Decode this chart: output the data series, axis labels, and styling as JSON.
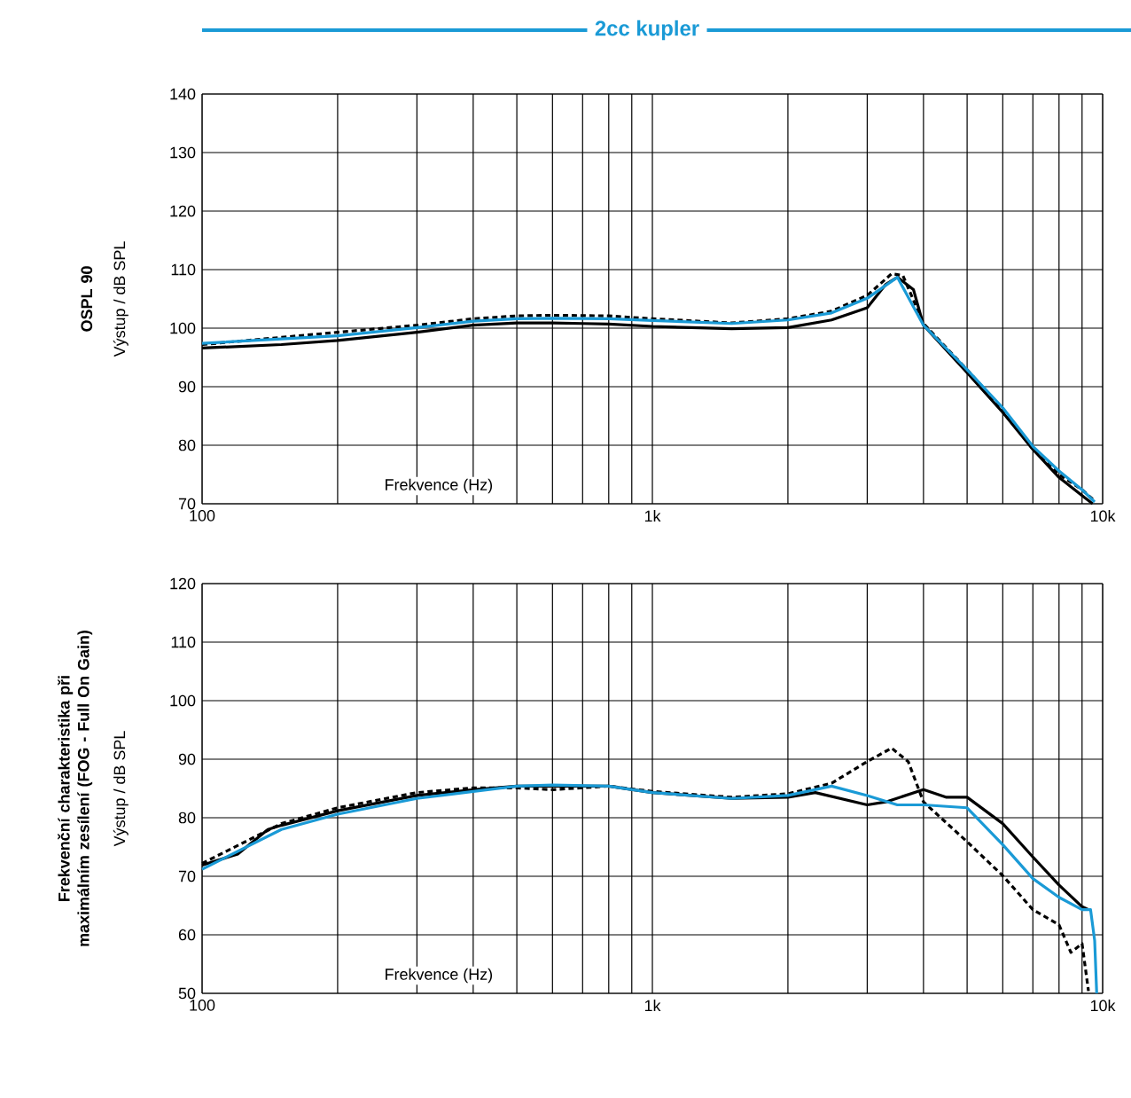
{
  "chart_data": [
    {
      "type": "line",
      "title": "2cc kupler",
      "subtitle": "**OSPL 90**",
      "ylabel": "Výstup / dB SPL",
      "xlabel": "Frekvence (Hz)",
      "log": "x",
      "grid": true,
      "marker": "none",
      "xlim": [
        100,
        10000
      ],
      "ylim": [
        70,
        140
      ],
      "xticks": [
        {
          "value": 100,
          "label": "100"
        },
        {
          "value": 200,
          "label": null
        },
        {
          "value": 300,
          "label": null
        },
        {
          "value": 400,
          "label": null
        },
        {
          "value": 500,
          "label": null
        },
        {
          "value": 600,
          "label": null
        },
        {
          "value": 700,
          "label": null
        },
        {
          "value": 800,
          "label": null
        },
        {
          "value": 900,
          "label": null
        },
        {
          "value": 1000,
          "label": "1k"
        },
        {
          "value": 2000,
          "label": null
        },
        {
          "value": 3000,
          "label": null
        },
        {
          "value": 4000,
          "label": null
        },
        {
          "value": 5000,
          "label": null
        },
        {
          "value": 6000,
          "label": null
        },
        {
          "value": 7000,
          "label": null
        },
        {
          "value": 8000,
          "label": null
        },
        {
          "value": 9000,
          "label": null
        },
        {
          "value": 10000,
          "label": "10k"
        }
      ],
      "yticks": [
        70,
        80,
        90,
        100,
        110,
        120,
        130,
        140
      ],
      "series": [
        {
          "color": "#000000",
          "line_style": "solid",
          "x": [
            100,
            150,
            200,
            300,
            400,
            500,
            600,
            700,
            800,
            1000,
            1500,
            2000,
            2500,
            3000,
            3300,
            3500,
            3800,
            4000,
            5000,
            6000,
            7000,
            8000,
            9000,
            9500
          ],
          "values": [
            96.6,
            97.2,
            97.9,
            99.3,
            100.5,
            100.9,
            100.9,
            100.8,
            100.7,
            100.3,
            99.9,
            100.1,
            101.4,
            103.5,
            107.5,
            108.7,
            106.6,
            100.5,
            92.4,
            85.6,
            79.3,
            74.5,
            71.4,
            70
          ]
        },
        {
          "color": "#000000",
          "line_style": "dashed",
          "x": [
            100,
            200,
            300,
            400,
            500,
            600,
            800,
            1000,
            1500,
            2000,
            2500,
            3000,
            3400,
            3600,
            4000,
            5000,
            6000,
            7000,
            8000,
            9000,
            9500
          ],
          "values": [
            97.2,
            99.3,
            100.5,
            101.6,
            102.1,
            102.2,
            102.1,
            101.6,
            100.9,
            101.6,
            102.9,
            105.6,
            109.3,
            109,
            100.8,
            92.9,
            86.1,
            79.3,
            75,
            72.4,
            70.8
          ]
        },
        {
          "color": "#1a9ad6",
          "line_style": "solid",
          "x": [
            100,
            200,
            300,
            400,
            500,
            600,
            800,
            1000,
            1500,
            2000,
            2500,
            3000,
            3500,
            4000,
            5000,
            6000,
            7000,
            8000,
            9000,
            9600
          ],
          "values": [
            97.4,
            98.7,
            100.1,
            101.2,
            101.6,
            101.7,
            101.6,
            101.3,
            100.8,
            101.4,
            102.6,
            105.1,
            108.7,
            100.5,
            92.9,
            86.4,
            79.8,
            75.6,
            72.4,
            70.3
          ]
        }
      ]
    },
    {
      "type": "line",
      "subtitle": "**Frekvenční charakteristika při maximálním zesílení (FOG - Full On Gain)**",
      "ylabel": "Výstup / dB SPL",
      "xlabel": "Frekvence (Hz)",
      "log": "x",
      "grid": true,
      "marker": "none",
      "xlim": [
        100,
        10000
      ],
      "ylim": [
        50,
        120
      ],
      "xticks": [
        {
          "value": 100,
          "label": "100"
        },
        {
          "value": 200,
          "label": null
        },
        {
          "value": 300,
          "label": null
        },
        {
          "value": 400,
          "label": null
        },
        {
          "value": 500,
          "label": null
        },
        {
          "value": 600,
          "label": null
        },
        {
          "value": 700,
          "label": null
        },
        {
          "value": 800,
          "label": null
        },
        {
          "value": 900,
          "label": null
        },
        {
          "value": 1000,
          "label": "1k"
        },
        {
          "value": 2000,
          "label": null
        },
        {
          "value": 3000,
          "label": null
        },
        {
          "value": 4000,
          "label": null
        },
        {
          "value": 5000,
          "label": null
        },
        {
          "value": 6000,
          "label": null
        },
        {
          "value": 7000,
          "label": null
        },
        {
          "value": 8000,
          "label": null
        },
        {
          "value": 9000,
          "label": null
        },
        {
          "value": 10000,
          "label": "10k"
        }
      ],
      "yticks": [
        50,
        60,
        70,
        80,
        90,
        100,
        110,
        120
      ],
      "series": [
        {
          "color": "#000000",
          "line_style": "solid",
          "x": [
            100,
            120,
            140,
            150,
            200,
            300,
            400,
            500,
            600,
            800,
            1000,
            1500,
            2000,
            2300,
            3000,
            3300,
            4000,
            4500,
            5000,
            6000,
            7000,
            8000,
            9000,
            9300
          ],
          "values": [
            71.9,
            73.8,
            78,
            78.7,
            81.2,
            83.8,
            84.8,
            85.4,
            85.4,
            85.4,
            84.3,
            83.3,
            83.5,
            84.3,
            82.2,
            82.7,
            84.8,
            83.5,
            83.5,
            79,
            73.3,
            68.5,
            64.8,
            64.3
          ]
        },
        {
          "color": "#000000",
          "line_style": "dashed",
          "x": [
            100,
            150,
            200,
            300,
            400,
            500,
            600,
            800,
            1000,
            1500,
            2000,
            2500,
            3000,
            3400,
            3700,
            4000,
            5000,
            6000,
            7000,
            8000,
            8500,
            9000,
            9300
          ],
          "values": [
            72.2,
            79,
            81.7,
            84.3,
            85.1,
            85.1,
            84.8,
            85.4,
            84.5,
            83.5,
            84.1,
            85.9,
            89.6,
            91.9,
            89.6,
            82.7,
            75.9,
            70.1,
            64.3,
            61.7,
            57,
            58.5,
            50.4
          ]
        },
        {
          "color": "#1a9ad6",
          "line_style": "solid",
          "x": [
            100,
            150,
            200,
            300,
            400,
            500,
            600,
            800,
            1000,
            1500,
            2000,
            2500,
            3000,
            3500,
            4000,
            5000,
            6000,
            7000,
            8000,
            9000,
            9400,
            9600,
            9700
          ],
          "values": [
            71.2,
            78,
            80.6,
            83.3,
            84.5,
            85.4,
            85.6,
            85.4,
            84.3,
            83.3,
            83.8,
            85.4,
            83.8,
            82.2,
            82.2,
            81.7,
            75.4,
            69.6,
            66.4,
            64.3,
            64.3,
            59,
            50
          ]
        }
      ]
    }
  ]
}
